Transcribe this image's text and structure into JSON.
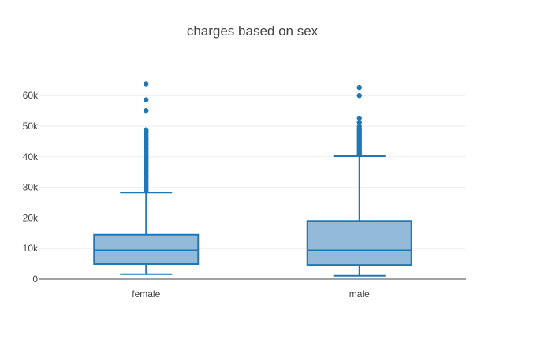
{
  "chart_data": {
    "type": "box",
    "title": "charges based on sex",
    "xlabel": "",
    "ylabel": "",
    "categories": [
      "female",
      "male"
    ],
    "ylim": [
      0,
      67000
    ],
    "y_ticks": [
      0,
      10000,
      20000,
      30000,
      40000,
      50000,
      60000
    ],
    "y_tick_labels": [
      "0",
      "10k",
      "20k",
      "30k",
      "40k",
      "50k",
      "60k"
    ],
    "grid": true,
    "legend": "none",
    "colors": {
      "box_fill": "#93bad9",
      "box_line": "#1f77b4",
      "outlier": "#1f77b4",
      "grid": "#eeeeee",
      "axis": "#444444",
      "title": "#444444"
    },
    "boxes": [
      {
        "category": "female",
        "lower_fence": 1600,
        "q1": 4900,
        "median": 9400,
        "q3": 14500,
        "upper_fence": 28300,
        "outliers": [
          28900,
          29300,
          29800,
          30300,
          30800,
          31400,
          32000,
          32500,
          33000,
          33600,
          34200,
          34800,
          35300,
          35900,
          36500,
          37100,
          37600,
          38200,
          38800,
          39300,
          39800,
          40300,
          40900,
          41500,
          42100,
          42700,
          43200,
          43800,
          44400,
          45000,
          45600,
          46100,
          46700,
          47200,
          47800,
          48300,
          48800,
          55100,
          58600,
          63800
        ]
      },
      {
        "category": "male",
        "lower_fence": 1100,
        "q1": 4600,
        "median": 9400,
        "q3": 19000,
        "upper_fence": 40200,
        "outliers": [
          40800,
          41300,
          41800,
          42300,
          42900,
          43400,
          44000,
          44500,
          45000,
          45600,
          46100,
          46700,
          47200,
          47700,
          48200,
          48700,
          49200,
          49900,
          51200,
          52600,
          60000,
          62600
        ]
      }
    ]
  }
}
